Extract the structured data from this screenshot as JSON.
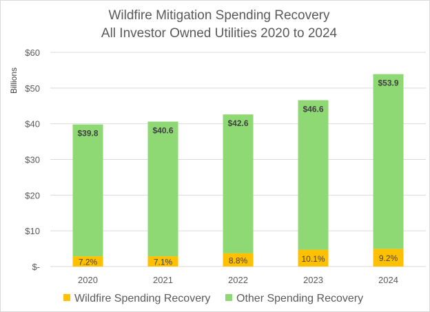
{
  "chart_data": {
    "type": "bar",
    "stacked": true,
    "title": "Wildfire Mitigation Spending Recovery",
    "subtitle": "All Investor Owned Utilities 2020 to 2024",
    "xlabel": "",
    "ylabel": "Billions",
    "ylim": [
      0,
      60
    ],
    "yticks": [
      0,
      10,
      20,
      30,
      40,
      50,
      60
    ],
    "ytick_labels": [
      "$-",
      "$10",
      "$20",
      "$30",
      "$40",
      "$50",
      "$60"
    ],
    "grid": true,
    "legend_position": "bottom",
    "categories": [
      "2020",
      "2021",
      "2022",
      "2023",
      "2024"
    ],
    "totals": [
      39.8,
      40.6,
      42.6,
      46.6,
      53.9
    ],
    "total_labels": [
      "$39.8",
      "$40.6",
      "$42.6",
      "$46.6",
      "$53.9"
    ],
    "series": [
      {
        "name": "Wildfire Spending Recovery",
        "color": "#ffc000",
        "values": [
          2.87,
          2.88,
          3.75,
          4.71,
          4.96
        ],
        "labels": [
          "7.2%",
          "7.1%",
          "8.8%",
          "10.1%",
          "9.2%"
        ]
      },
      {
        "name": "Other Spending Recovery",
        "color": "#8fd974",
        "values": [
          36.93,
          37.72,
          38.85,
          41.89,
          48.94
        ]
      }
    ]
  }
}
